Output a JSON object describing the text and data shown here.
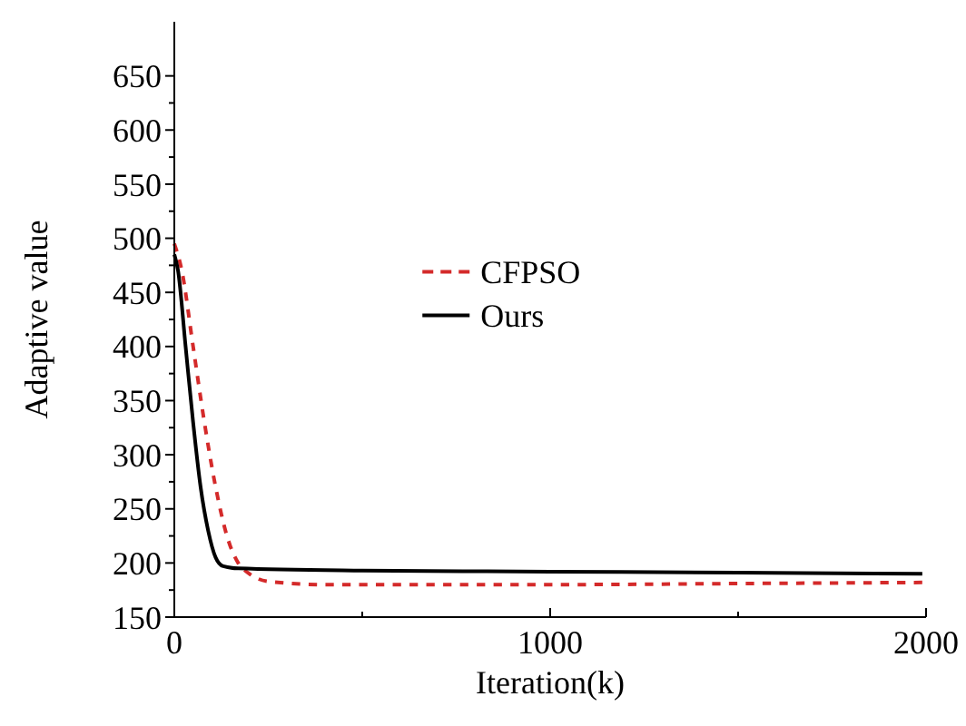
{
  "chart_data": {
    "type": "line",
    "xlabel": "Iteration(k)",
    "ylabel": "Adaptive value",
    "xlim": [
      0,
      2000
    ],
    "ylim": [
      150,
      700
    ],
    "xticks": [
      0,
      {
        "value": 500,
        "label": null
      },
      1000,
      {
        "value": 1500,
        "label": null
      },
      2000
    ],
    "yticks": [
      150,
      200,
      250,
      300,
      350,
      400,
      450,
      500,
      550,
      600,
      650
    ],
    "grid": false,
    "legend": "center",
    "series": [
      {
        "name": "CFPSO",
        "color": "#d42a2a",
        "line_style": "dashed",
        "x": [
          0,
          20,
          50,
          80,
          110,
          140,
          170,
          200,
          250,
          400,
          1000,
          1500,
          1990
        ],
        "values": [
          495,
          470,
          400,
          330,
          270,
          225,
          200,
          190,
          183,
          180,
          180,
          181,
          182
        ]
      },
      {
        "name": "Ours",
        "color": "#000000",
        "line_style": "solid",
        "x": [
          0,
          10,
          30,
          50,
          70,
          90,
          110,
          130,
          170,
          500,
          1000,
          1500,
          1990
        ],
        "values": [
          485,
          470,
          400,
          330,
          270,
          230,
          205,
          197,
          195,
          193,
          192,
          191,
          190
        ]
      }
    ]
  }
}
